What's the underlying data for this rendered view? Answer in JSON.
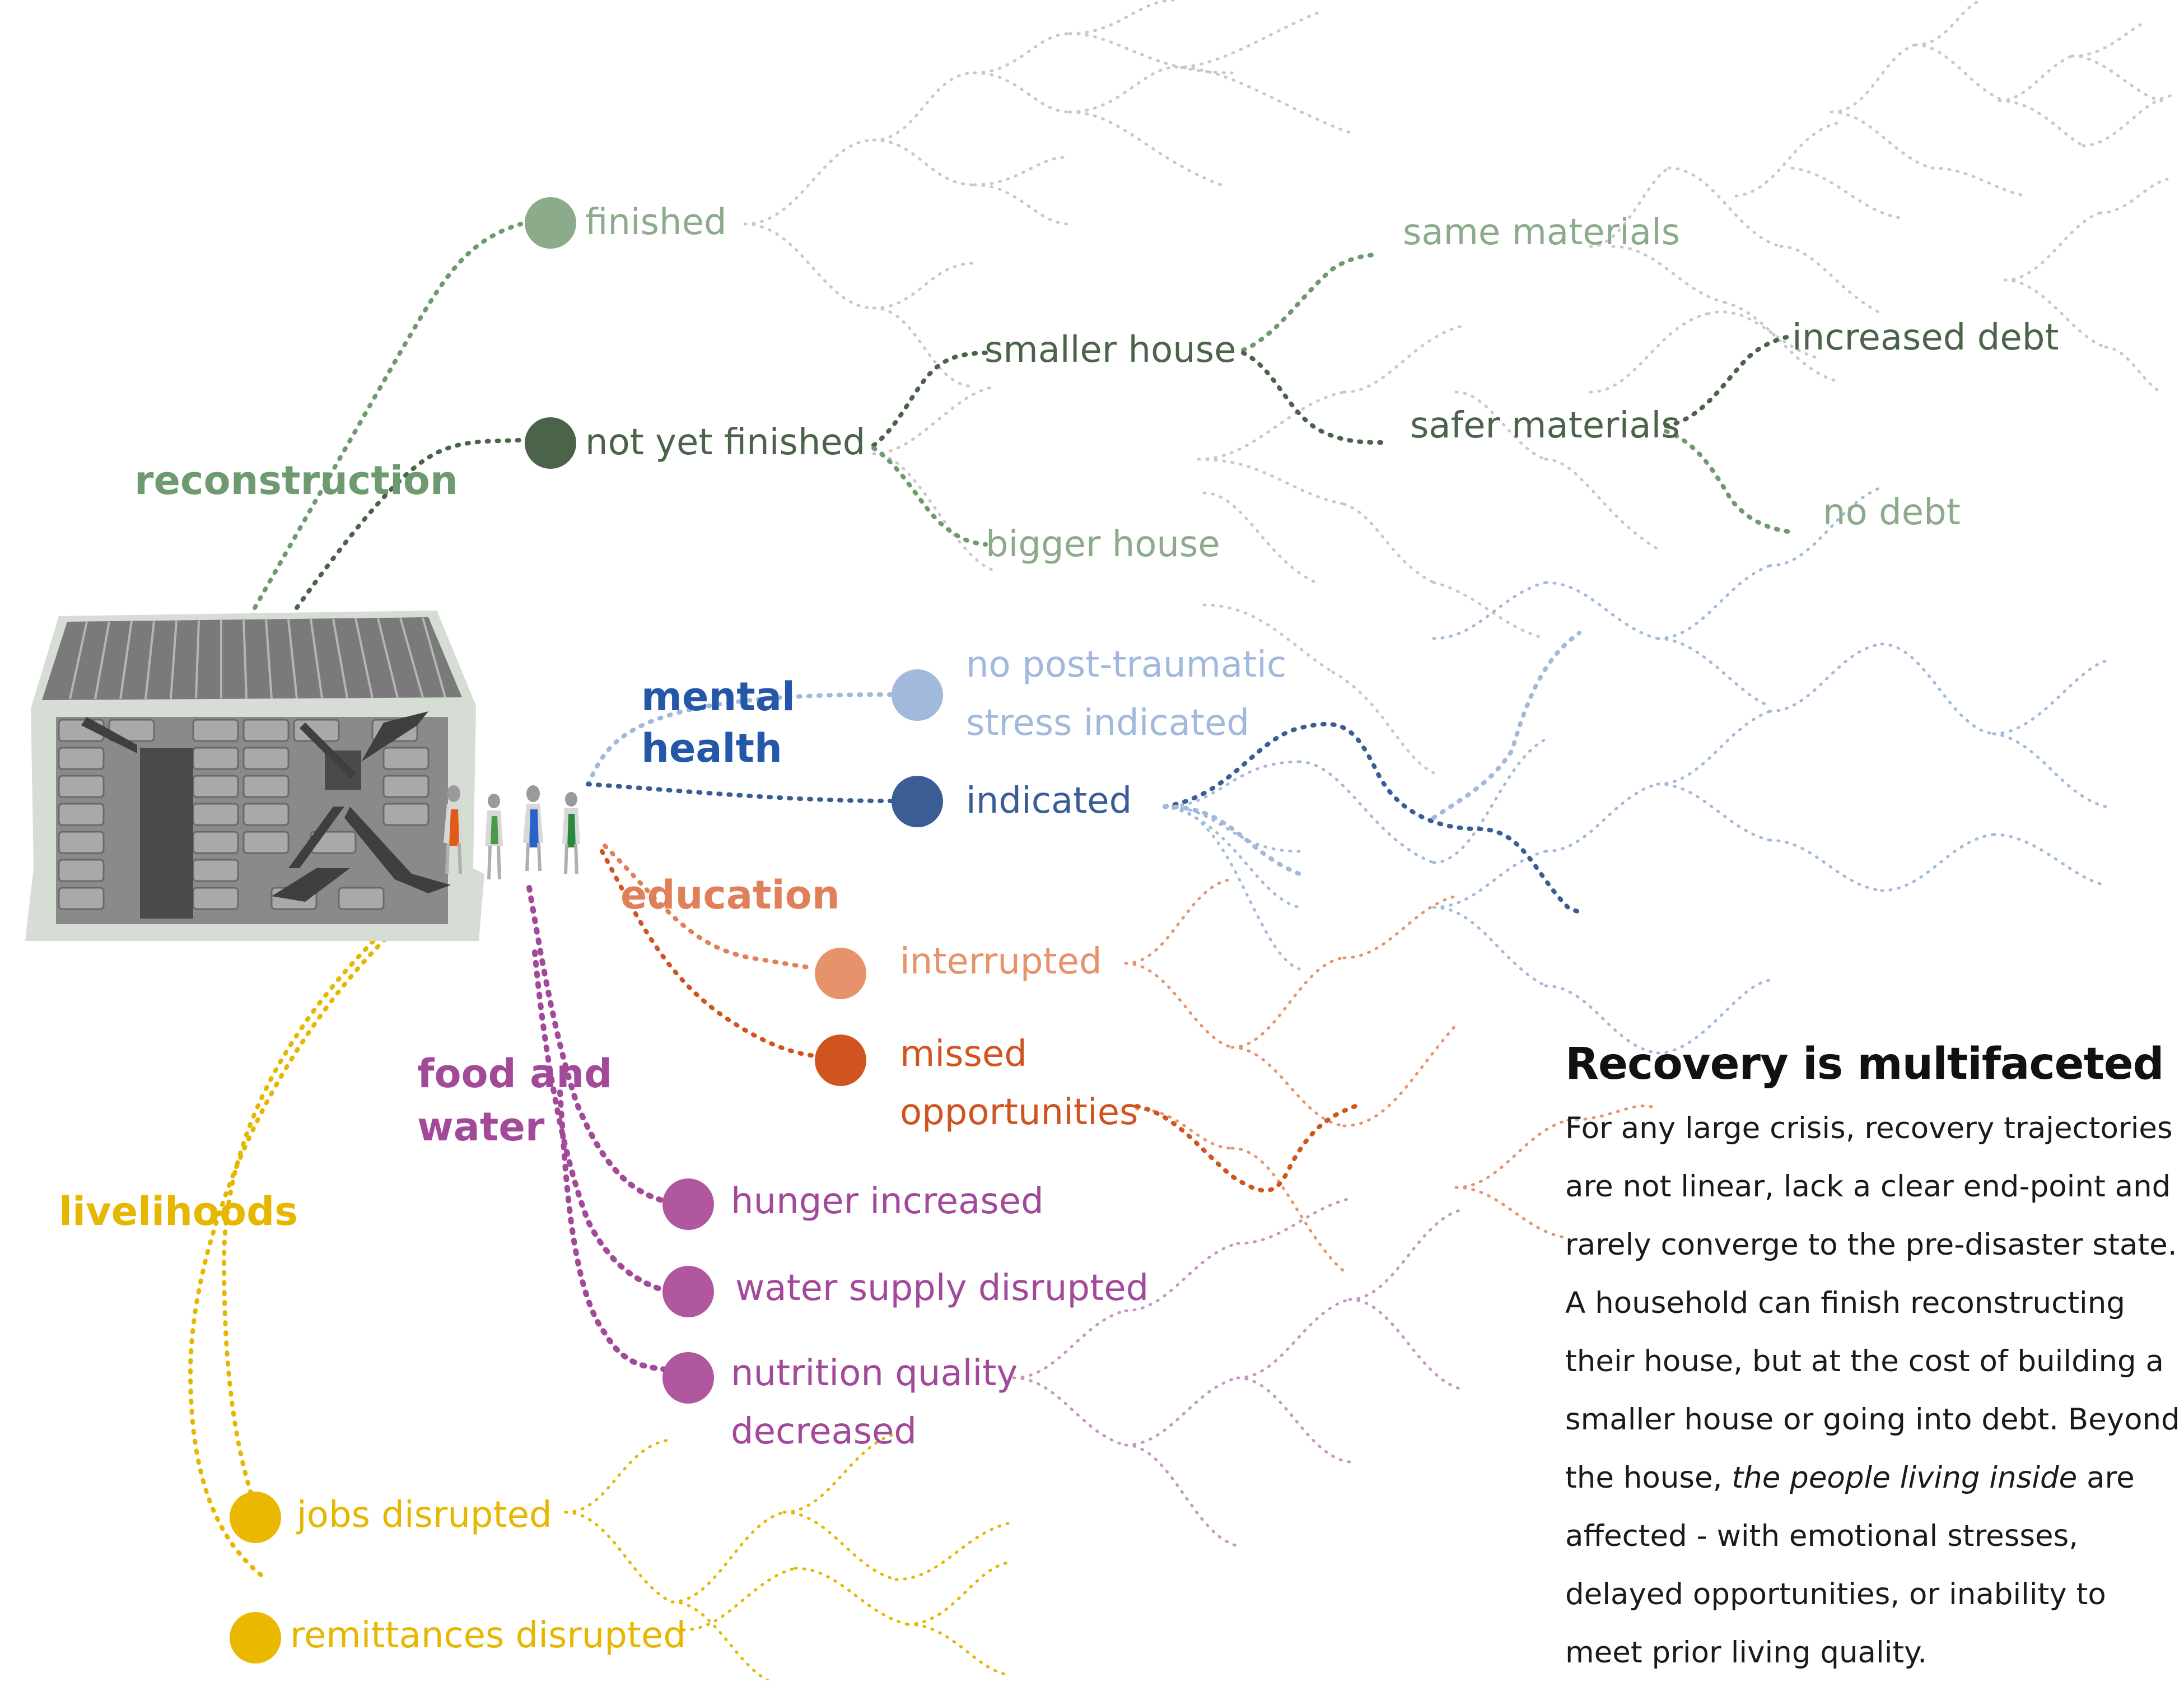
{
  "colors": {
    "reconstruction": "#6d9a6e",
    "reconstruction_light": "#8bab8b",
    "reconstruction_dark": "#4a6349",
    "mental": "#2457a7",
    "mental_light": "#a0b9dc",
    "mental_dark": "#3a5d96",
    "education": "#e0805a",
    "education_light": "#e6936c",
    "education_dark": "#d0541f",
    "food": "#a2499a",
    "food_dot": "#b0579f",
    "livelihoods": "#e6b700",
    "livelihoods_dot": "#eab800",
    "faded": "#c8c8c8",
    "house_wall": "#6b6b6b",
    "house_bg": "#d6ddd5"
  },
  "icons": [
    "cracked-house-icon",
    "family-icon"
  ],
  "categories": {
    "reconstruction": "reconstruction",
    "mental_health": "mental\nhealth",
    "education": "education",
    "food_and_water": "food and\nwater",
    "livelihoods": "livelihoods"
  },
  "outcomes": {
    "finished": "finished",
    "not_yet_finished": "not yet finished",
    "smaller_house": "smaller house",
    "bigger_house": "bigger house",
    "same_materials": "same materials",
    "safer_materials": "safer materials",
    "increased_debt": "increased debt",
    "no_debt": "no debt",
    "no_ptsd": "no post-traumatic\nstress indicated",
    "indicated": "indicated",
    "interrupted": "interrupted",
    "missed_opportunities": "missed\nopportunities",
    "hunger_increased": "hunger increased",
    "water_supply_disrupted": "water supply disrupted",
    "nutrition_quality_decreased": "nutrition quality\ndecreased",
    "jobs_disrupted": "jobs disrupted",
    "remittances_disrupted": "remittances disrupted"
  },
  "panel": {
    "title": "Recovery is multifaceted",
    "text_1": "For any large crisis, recovery trajectories are not linear, lack a clear end-point and rarely converge to the pre-disaster state. A household can finish reconstructing their house, but at the cost of building a smaller house or going into debt. Beyond the house, ",
    "text_italic": "the people living inside",
    "text_2": " are affected - with emotional stresses, delayed opportunities, or inability to meet prior living quality."
  }
}
